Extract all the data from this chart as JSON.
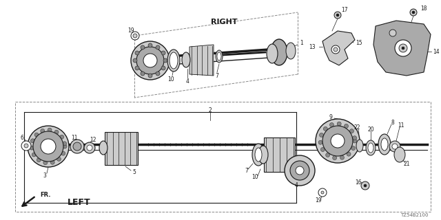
{
  "bg_color": "#ffffff",
  "diagram_code": "TZ54B2100",
  "right_label": "RIGHT",
  "left_label": "LEFT",
  "fr_label": "FR.",
  "line_color": "#1a1a1a",
  "gray1": "#aaaaaa",
  "gray2": "#cccccc",
  "gray3": "#888888",
  "gray4": "#dddddd",
  "gray5": "#666666"
}
